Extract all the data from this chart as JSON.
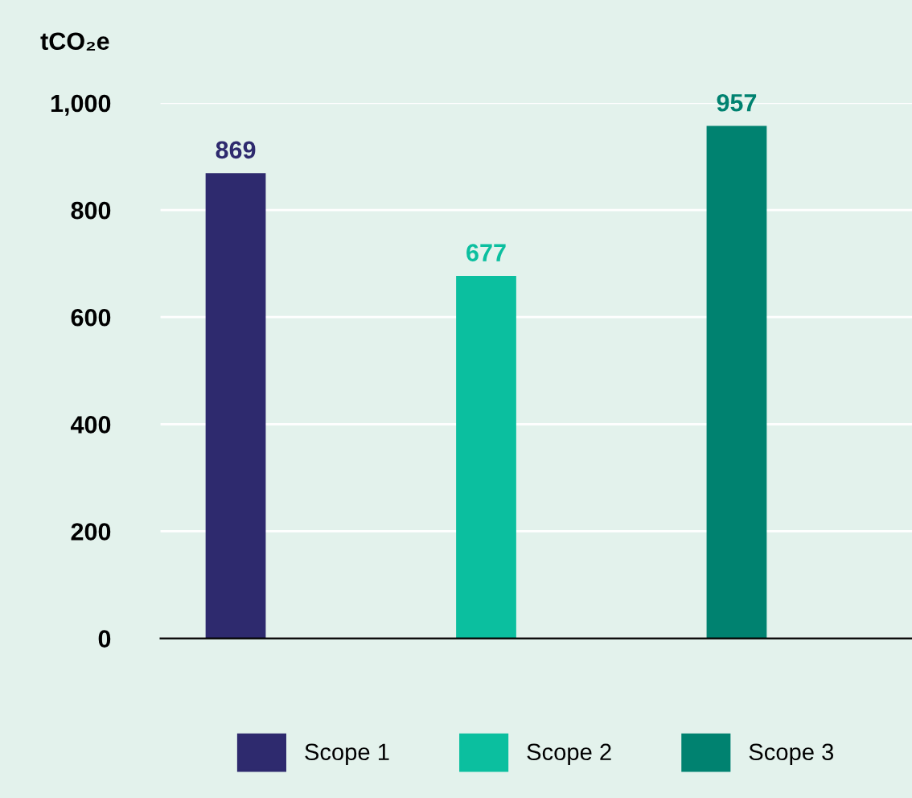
{
  "chart_data": {
    "type": "bar",
    "ylabel": "tCO₂e",
    "categories": [
      null,
      null,
      null
    ],
    "series": [
      {
        "name": "Scope 1",
        "color": "#2e2a6e",
        "values": [
          869,
          null,
          null
        ]
      },
      {
        "name": "Scope 2",
        "color": "#0bbf9f",
        "values": [
          null,
          677,
          null
        ]
      },
      {
        "name": "Scope 3",
        "color": "#008270",
        "values": [
          null,
          null,
          957
        ]
      }
    ],
    "ylim": [
      0,
      1000
    ],
    "yticks": [
      0,
      200,
      400,
      600,
      800,
      {
        "value": 1000,
        "label": "1,000"
      }
    ],
    "grid": "y",
    "legend": "bottom",
    "data_labels": true
  }
}
